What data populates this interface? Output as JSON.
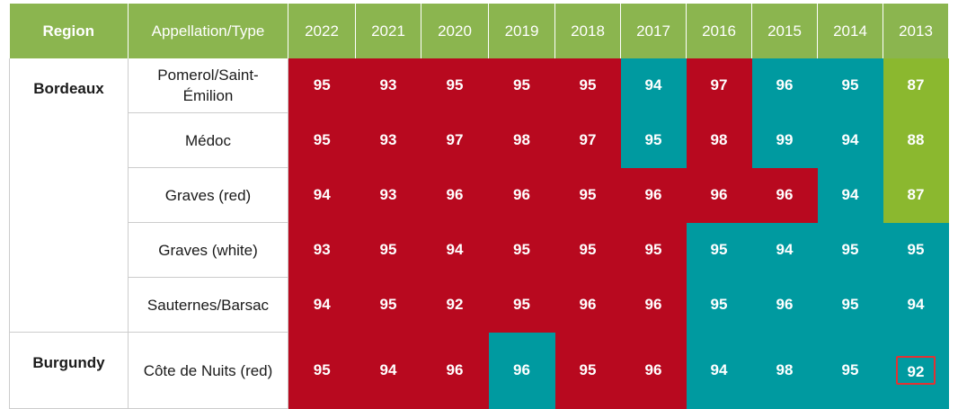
{
  "colors": {
    "header_green": "#8bb54f",
    "score_red": "#b8091f",
    "score_teal": "#009aa0",
    "score_green": "#8bb82f",
    "highlight_border": "#e23232"
  },
  "table": {
    "headers": [
      "Region",
      "Appellation/Type",
      "2022",
      "2021",
      "2020",
      "2019",
      "2018",
      "2017",
      "2016",
      "2015",
      "2014",
      "2013"
    ],
    "regions": [
      {
        "name": "Bordeaux",
        "rows": [
          {
            "appellation": "Pomerol/Saint-Émilion",
            "scores": [
              "95",
              "93",
              "95",
              "95",
              "95",
              "94",
              "97",
              "96",
              "95",
              "87"
            ],
            "colors": [
              "r",
              "r",
              "r",
              "r",
              "r",
              "t",
              "r",
              "t",
              "t",
              "g"
            ]
          },
          {
            "appellation": "Médoc",
            "scores": [
              "95",
              "93",
              "97",
              "98",
              "97",
              "95",
              "98",
              "99",
              "94",
              "88"
            ],
            "colors": [
              "r",
              "r",
              "r",
              "r",
              "r",
              "t",
              "r",
              "t",
              "t",
              "g"
            ]
          },
          {
            "appellation": "Graves (red)",
            "scores": [
              "94",
              "93",
              "96",
              "96",
              "95",
              "96",
              "96",
              "96",
              "94",
              "87"
            ],
            "colors": [
              "r",
              "r",
              "r",
              "r",
              "r",
              "r",
              "r",
              "r",
              "t",
              "g"
            ]
          },
          {
            "appellation": "Graves (white)",
            "scores": [
              "93",
              "95",
              "94",
              "95",
              "95",
              "95",
              "95",
              "94",
              "95",
              "95"
            ],
            "colors": [
              "r",
              "r",
              "r",
              "r",
              "r",
              "r",
              "t",
              "t",
              "t",
              "t"
            ]
          },
          {
            "appellation": "Sauternes/Barsac",
            "scores": [
              "94",
              "95",
              "92",
              "95",
              "96",
              "96",
              "95",
              "96",
              "95",
              "94"
            ],
            "colors": [
              "r",
              "r",
              "r",
              "r",
              "r",
              "r",
              "t",
              "t",
              "t",
              "t"
            ]
          }
        ]
      },
      {
        "name": "Burgundy",
        "rows": [
          {
            "appellation": "Côte de Nuits (red)",
            "scores": [
              "95",
              "94",
              "96",
              "96",
              "95",
              "96",
              "94",
              "98",
              "95",
              "92"
            ],
            "colors": [
              "r",
              "r",
              "r",
              "t",
              "r",
              "r",
              "t",
              "t",
              "t",
              "t"
            ]
          }
        ]
      }
    ],
    "highlighted_cell": {
      "region": 1,
      "row": 0,
      "col": 9
    }
  }
}
